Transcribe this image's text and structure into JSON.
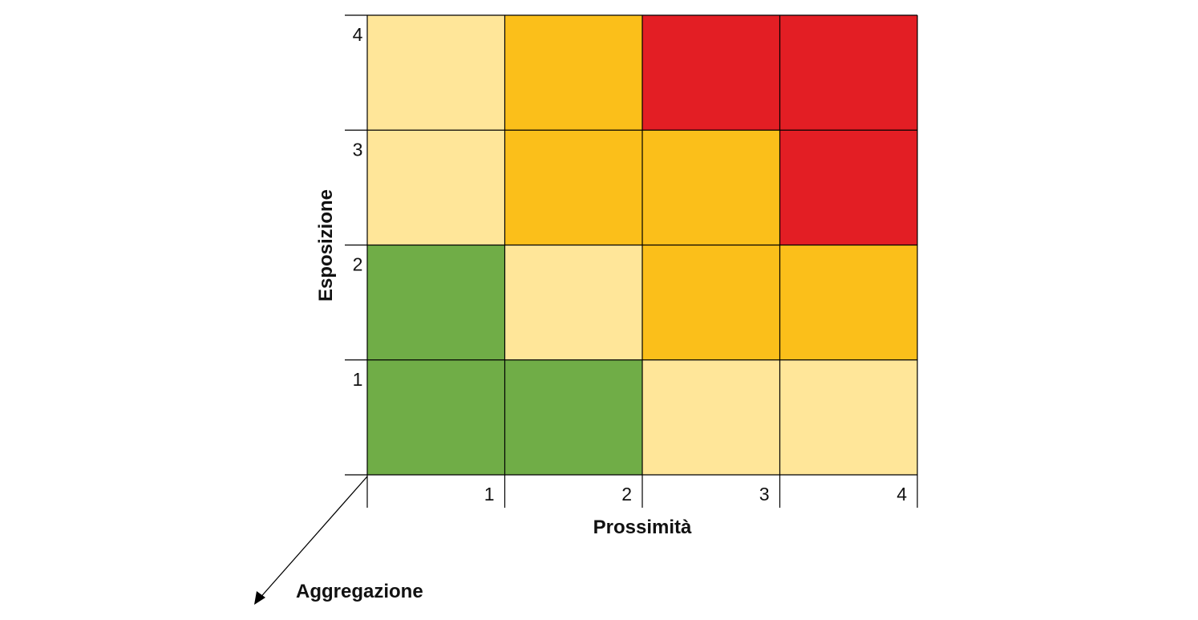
{
  "chart_data": {
    "type": "heatmap",
    "x": [
      1,
      2,
      3,
      4
    ],
    "y": [
      1,
      2,
      3,
      4
    ],
    "x_tick_labels": [
      "1",
      "2",
      "3",
      "4"
    ],
    "y_tick_labels": [
      "1",
      "2",
      "3",
      "4"
    ],
    "xlabel": "Prossimità",
    "ylabel": "Esposizione",
    "zlabel": "Aggregazione",
    "levels": [
      "low",
      "medium-low",
      "medium-high",
      "high"
    ],
    "cells": [
      {
        "x": 1,
        "y": 1,
        "level": "low"
      },
      {
        "x": 2,
        "y": 1,
        "level": "low"
      },
      {
        "x": 3,
        "y": 1,
        "level": "medium-low"
      },
      {
        "x": 4,
        "y": 1,
        "level": "medium-low"
      },
      {
        "x": 1,
        "y": 2,
        "level": "low"
      },
      {
        "x": 2,
        "y": 2,
        "level": "medium-low"
      },
      {
        "x": 3,
        "y": 2,
        "level": "medium-high"
      },
      {
        "x": 4,
        "y": 2,
        "level": "medium-high"
      },
      {
        "x": 1,
        "y": 3,
        "level": "medium-low"
      },
      {
        "x": 2,
        "y": 3,
        "level": "medium-high"
      },
      {
        "x": 3,
        "y": 3,
        "level": "medium-high"
      },
      {
        "x": 4,
        "y": 3,
        "level": "high"
      },
      {
        "x": 1,
        "y": 4,
        "level": "medium-low"
      },
      {
        "x": 2,
        "y": 4,
        "level": "medium-high"
      },
      {
        "x": 3,
        "y": 4,
        "level": "high"
      },
      {
        "x": 4,
        "y": 4,
        "level": "high"
      }
    ],
    "colors": {
      "low": "#70AD47",
      "medium-low": "#FFE699",
      "medium-high": "#FBBF1A",
      "high": "#E31E24",
      "grid": "#000000"
    },
    "grid": true,
    "legend": "none"
  }
}
